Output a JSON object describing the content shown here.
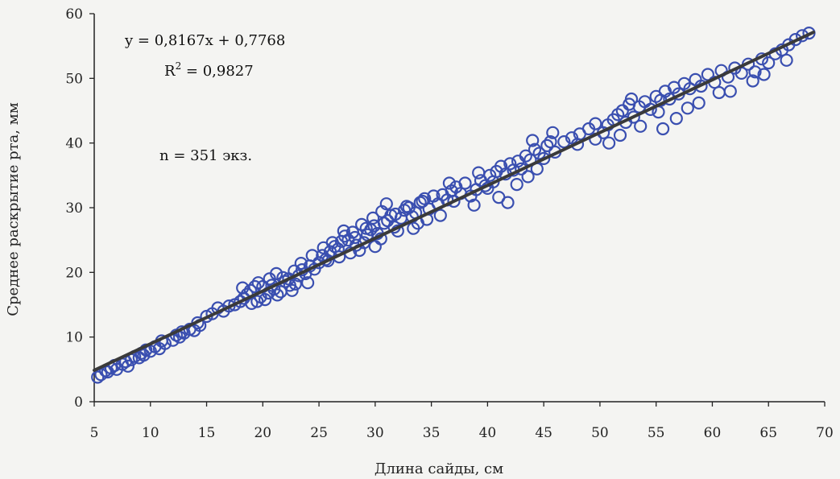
{
  "chart_data": {
    "type": "scatter",
    "xlabel": "Длина сайды, см",
    "ylabel": "Среднее раскрытие рта, мм",
    "xlim": [
      5,
      70
    ],
    "ylim": [
      0,
      60
    ],
    "xticks": [
      "5",
      "10",
      "15",
      "20",
      "25",
      "30",
      "35",
      "40",
      "45",
      "50",
      "55",
      "60",
      "65",
      "70"
    ],
    "yticks": [
      "0",
      "10",
      "20",
      "30",
      "40",
      "50",
      "60"
    ],
    "grid": false,
    "trendline": {
      "slope": 0.8167,
      "intercept": 0.7768,
      "x_range": [
        5,
        69
      ]
    },
    "annotations": {
      "equation": "y = 0,8167x + 0,7768",
      "r2_label": "R",
      "r2_sup": "2",
      "r2_value": " = 0,9827",
      "n_label": "n = 351 экз."
    },
    "colors": {
      "marker": "#3a4fb0",
      "trendline": "#3a3a3a",
      "axis": "#222222"
    },
    "points": [
      [
        5.3,
        3.8
      ],
      [
        5.6,
        4.2
      ],
      [
        6.0,
        4.8
      ],
      [
        6.5,
        5.2
      ],
      [
        6.2,
        4.6
      ],
      [
        7.0,
        5.0
      ],
      [
        7.5,
        5.8
      ],
      [
        8.0,
        5.5
      ],
      [
        8.3,
        6.5
      ],
      [
        8.6,
        7.0
      ],
      [
        9.0,
        6.8
      ],
      [
        9.2,
        7.5
      ],
      [
        9.6,
        8.0
      ],
      [
        10.0,
        7.8
      ],
      [
        10.4,
        8.5
      ],
      [
        10.8,
        8.2
      ],
      [
        11.3,
        9.0
      ],
      [
        12.0,
        9.5
      ],
      [
        12.3,
        10.3
      ],
      [
        12.6,
        10.0
      ],
      [
        13.0,
        10.6
      ],
      [
        13.5,
        11.2
      ],
      [
        13.9,
        11.0
      ],
      [
        14.4,
        11.8
      ],
      [
        15.0,
        13.2
      ],
      [
        15.5,
        13.6
      ],
      [
        16.0,
        14.5
      ],
      [
        17.0,
        14.8
      ],
      [
        18.0,
        15.5
      ],
      [
        18.3,
        16.0
      ],
      [
        18.6,
        16.6
      ],
      [
        18.9,
        17.2
      ],
      [
        19.3,
        17.8
      ],
      [
        19.5,
        15.5
      ],
      [
        19.8,
        16.2
      ],
      [
        20.2,
        15.8
      ],
      [
        20.5,
        16.8
      ],
      [
        20.8,
        18.0
      ],
      [
        21.0,
        17.4
      ],
      [
        21.3,
        16.5
      ],
      [
        21.6,
        17.0
      ],
      [
        22.0,
        18.6
      ],
      [
        22.3,
        19.0
      ],
      [
        22.6,
        17.2
      ],
      [
        22.9,
        18.2
      ],
      [
        23.2,
        19.5
      ],
      [
        23.5,
        20.4
      ],
      [
        23.8,
        19.8
      ],
      [
        24.2,
        21.0
      ],
      [
        24.6,
        20.5
      ],
      [
        25.0,
        21.5
      ],
      [
        25.3,
        22.6
      ],
      [
        25.6,
        22.0
      ],
      [
        26.0,
        23.2
      ],
      [
        26.4,
        24.0
      ],
      [
        26.7,
        23.6
      ],
      [
        27.0,
        24.8
      ],
      [
        27.3,
        25.6
      ],
      [
        27.6,
        25.0
      ],
      [
        28.0,
        26.2
      ],
      [
        28.3,
        24.2
      ],
      [
        28.6,
        23.4
      ],
      [
        29.0,
        24.6
      ],
      [
        29.3,
        25.8
      ],
      [
        29.6,
        26.6
      ],
      [
        29.9,
        27.2
      ],
      [
        30.2,
        26.0
      ],
      [
        30.5,
        25.2
      ],
      [
        30.8,
        27.6
      ],
      [
        31.1,
        28.0
      ],
      [
        31.4,
        28.8
      ],
      [
        31.7,
        27.0
      ],
      [
        32.0,
        26.4
      ],
      [
        32.3,
        28.4
      ],
      [
        32.6,
        29.6
      ],
      [
        33.0,
        30.0
      ],
      [
        33.3,
        28.6
      ],
      [
        33.6,
        29.2
      ],
      [
        34.0,
        30.8
      ],
      [
        34.4,
        31.4
      ],
      [
        34.8,
        29.8
      ],
      [
        35.2,
        31.8
      ],
      [
        35.6,
        30.6
      ],
      [
        36.0,
        32.0
      ],
      [
        36.4,
        31.2
      ],
      [
        36.8,
        32.6
      ],
      [
        37.2,
        33.2
      ],
      [
        37.6,
        32.2
      ],
      [
        38.0,
        33.8
      ],
      [
        38.5,
        31.8
      ],
      [
        39.0,
        32.8
      ],
      [
        39.4,
        34.2
      ],
      [
        39.8,
        33.4
      ],
      [
        40.2,
        35.0
      ],
      [
        40.5,
        34.0
      ],
      [
        40.8,
        35.6
      ],
      [
        41.2,
        36.4
      ],
      [
        41.6,
        35.2
      ],
      [
        42.0,
        36.8
      ],
      [
        42.3,
        35.8
      ],
      [
        42.7,
        37.2
      ],
      [
        43.0,
        36.0
      ],
      [
        43.4,
        38.0
      ],
      [
        43.8,
        37.4
      ],
      [
        44.2,
        39.0
      ],
      [
        44.6,
        38.4
      ],
      [
        45.0,
        37.6
      ],
      [
        45.3,
        39.6
      ],
      [
        46.0,
        38.6
      ],
      [
        46.8,
        40.2
      ],
      [
        47.5,
        40.8
      ],
      [
        48.2,
        41.4
      ],
      [
        49.0,
        42.2
      ],
      [
        49.6,
        43.0
      ],
      [
        50.3,
        41.6
      ],
      [
        50.7,
        42.8
      ],
      [
        51.2,
        43.6
      ],
      [
        51.6,
        44.4
      ],
      [
        52.0,
        45.0
      ],
      [
        52.3,
        43.2
      ],
      [
        52.6,
        46.0
      ],
      [
        53.0,
        44.0
      ],
      [
        53.5,
        45.6
      ],
      [
        54.0,
        46.4
      ],
      [
        54.5,
        45.2
      ],
      [
        55.0,
        47.2
      ],
      [
        55.4,
        46.6
      ],
      [
        55.8,
        48.0
      ],
      [
        56.2,
        46.8
      ],
      [
        56.6,
        48.6
      ],
      [
        57.0,
        47.6
      ],
      [
        57.5,
        49.2
      ],
      [
        58.0,
        48.4
      ],
      [
        58.5,
        49.8
      ],
      [
        59.0,
        48.8
      ],
      [
        59.6,
        50.6
      ],
      [
        60.2,
        49.4
      ],
      [
        60.8,
        51.2
      ],
      [
        61.4,
        50.2
      ],
      [
        62.0,
        51.6
      ],
      [
        62.6,
        50.8
      ],
      [
        63.2,
        52.2
      ],
      [
        63.8,
        51.0
      ],
      [
        64.4,
        53.0
      ],
      [
        65.0,
        52.4
      ],
      [
        65.6,
        53.8
      ],
      [
        66.2,
        54.4
      ],
      [
        66.8,
        55.2
      ],
      [
        67.4,
        56.0
      ],
      [
        68.0,
        56.6
      ],
      [
        68.6,
        57.0
      ],
      [
        6.8,
        5.6
      ],
      [
        7.8,
        6.2
      ],
      [
        9.4,
        7.2
      ],
      [
        11.0,
        9.4
      ],
      [
        12.8,
        10.8
      ],
      [
        14.2,
        12.2
      ],
      [
        16.5,
        14.0
      ],
      [
        17.5,
        15.0
      ],
      [
        19.0,
        15.2
      ],
      [
        20.0,
        17.8
      ],
      [
        21.8,
        19.2
      ],
      [
        22.8,
        20.2
      ],
      [
        24.0,
        18.4
      ],
      [
        25.8,
        21.8
      ],
      [
        26.8,
        22.4
      ],
      [
        27.8,
        23.0
      ],
      [
        28.8,
        27.4
      ],
      [
        29.8,
        28.4
      ],
      [
        30.0,
        24.0
      ],
      [
        31.0,
        30.6
      ],
      [
        31.8,
        29.0
      ],
      [
        33.8,
        27.6
      ],
      [
        34.6,
        28.2
      ],
      [
        35.8,
        28.8
      ],
      [
        37.0,
        31.0
      ],
      [
        38.8,
        30.4
      ],
      [
        40.0,
        33.0
      ],
      [
        41.0,
        31.6
      ],
      [
        41.8,
        30.8
      ],
      [
        42.6,
        33.6
      ],
      [
        43.6,
        34.8
      ],
      [
        44.4,
        36.0
      ],
      [
        45.6,
        40.2
      ],
      [
        48.0,
        39.8
      ],
      [
        49.6,
        40.6
      ],
      [
        50.8,
        40.0
      ],
      [
        51.8,
        41.2
      ],
      [
        53.6,
        42.6
      ],
      [
        55.6,
        42.2
      ],
      [
        56.8,
        43.8
      ],
      [
        57.8,
        45.4
      ],
      [
        58.8,
        46.2
      ],
      [
        60.6,
        47.8
      ],
      [
        61.6,
        48.0
      ],
      [
        63.6,
        49.6
      ],
      [
        64.6,
        50.6
      ],
      [
        66.6,
        52.8
      ],
      [
        55.2,
        44.8
      ],
      [
        52.8,
        46.8
      ],
      [
        45.8,
        41.6
      ],
      [
        44.0,
        40.4
      ],
      [
        39.2,
        35.4
      ],
      [
        36.6,
        33.8
      ],
      [
        34.2,
        31.0
      ],
      [
        32.8,
        30.2
      ],
      [
        30.6,
        29.4
      ],
      [
        29.2,
        26.8
      ],
      [
        27.2,
        26.4
      ],
      [
        25.4,
        23.8
      ],
      [
        23.4,
        21.4
      ],
      [
        21.2,
        19.8
      ],
      [
        20.6,
        19.0
      ],
      [
        19.6,
        18.4
      ],
      [
        18.2,
        17.6
      ],
      [
        22.4,
        18.0
      ],
      [
        24.4,
        22.6
      ],
      [
        26.2,
        24.6
      ],
      [
        28.2,
        25.4
      ],
      [
        33.4,
        26.8
      ]
    ]
  }
}
